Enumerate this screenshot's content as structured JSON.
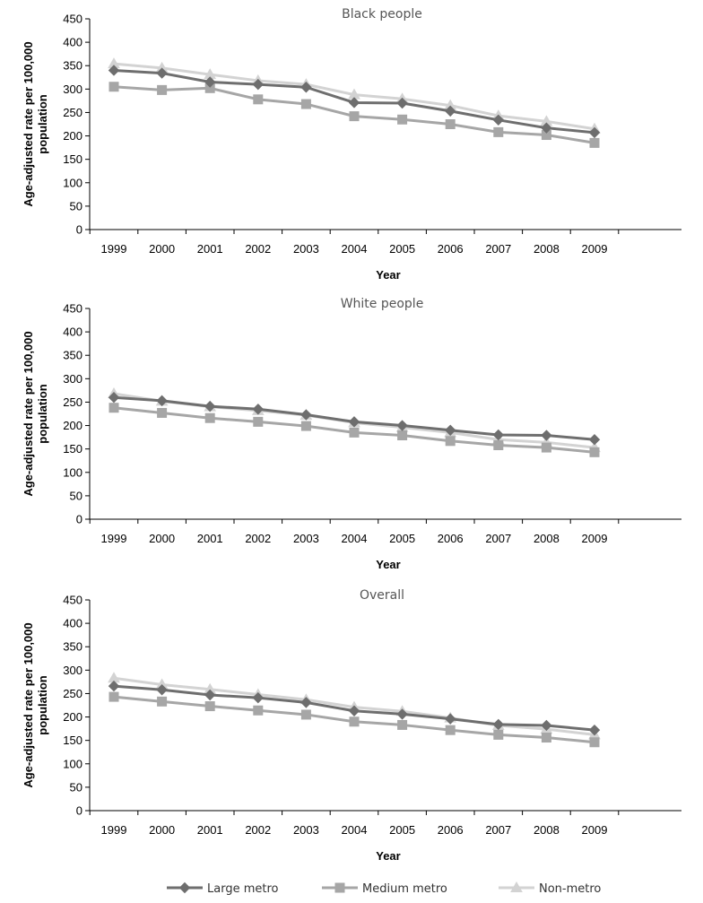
{
  "colors": {
    "large_metro": "#6e6e6e",
    "medium_metro": "#a6a6a6",
    "non_metro": "#d3d3d3",
    "axis": "#000000"
  },
  "legend": [
    {
      "label": "Large metro",
      "marker": "diamond",
      "color": "#6e6e6e"
    },
    {
      "label": "Medium metro",
      "marker": "square",
      "color": "#a6a6a6"
    },
    {
      "label": "Non-metro",
      "marker": "triangle",
      "color": "#d3d3d3"
    }
  ],
  "chart_data": [
    {
      "type": "line",
      "title": "Black people",
      "xlabel": "Year",
      "ylabel": "Age-adjusted rate per 100,000 population",
      "categories": [
        "1999",
        "2000",
        "2001",
        "2002",
        "2003",
        "2004",
        "2005",
        "2006",
        "2007",
        "2008",
        "2009"
      ],
      "ylim": [
        0,
        450
      ],
      "yticks": [
        0,
        50,
        100,
        150,
        200,
        250,
        300,
        350,
        400,
        450
      ],
      "grid": false,
      "series": [
        {
          "name": "Large metro",
          "marker": "diamond",
          "color": "#6e6e6e",
          "values": [
            340,
            334,
            315,
            310,
            304,
            271,
            270,
            253,
            234,
            217,
            207
          ]
        },
        {
          "name": "Medium metro",
          "marker": "square",
          "color": "#a6a6a6",
          "values": [
            305,
            298,
            302,
            278,
            268,
            242,
            235,
            225,
            208,
            202,
            185
          ]
        },
        {
          "name": "Non-metro",
          "marker": "triangle",
          "color": "#d3d3d3",
          "values": [
            354,
            345,
            331,
            318,
            310,
            288,
            279,
            265,
            243,
            231,
            215
          ]
        }
      ]
    },
    {
      "type": "line",
      "title": "White people",
      "xlabel": "Year",
      "ylabel": "Age-adjusted rate per 100,000 population",
      "categories": [
        "1999",
        "2000",
        "2001",
        "2002",
        "2003",
        "2004",
        "2005",
        "2006",
        "2007",
        "2008",
        "2009"
      ],
      "ylim": [
        0,
        450
      ],
      "yticks": [
        0,
        50,
        100,
        150,
        200,
        250,
        300,
        350,
        400,
        450
      ],
      "grid": false,
      "series": [
        {
          "name": "Large metro",
          "marker": "diamond",
          "color": "#6e6e6e",
          "values": [
            260,
            253,
            241,
            235,
            223,
            208,
            200,
            190,
            180,
            179,
            170
          ]
        },
        {
          "name": "Medium metro",
          "marker": "square",
          "color": "#a6a6a6",
          "values": [
            238,
            227,
            216,
            208,
            199,
            185,
            179,
            167,
            158,
            153,
            143
          ]
        },
        {
          "name": "Non-metro",
          "marker": "triangle",
          "color": "#d3d3d3",
          "values": [
            268,
            252,
            240,
            232,
            222,
            206,
            196,
            185,
            170,
            164,
            153
          ]
        }
      ]
    },
    {
      "type": "line",
      "title": "Overall",
      "xlabel": "Year",
      "ylabel": "Age-adjusted rate per 100,000 population",
      "categories": [
        "1999",
        "2000",
        "2001",
        "2002",
        "2003",
        "2004",
        "2005",
        "2006",
        "2007",
        "2008",
        "2009"
      ],
      "ylim": [
        0,
        450
      ],
      "yticks": [
        0,
        50,
        100,
        150,
        200,
        250,
        300,
        350,
        400,
        450
      ],
      "grid": false,
      "series": [
        {
          "name": "Large metro",
          "marker": "diamond",
          "color": "#6e6e6e",
          "values": [
            266,
            258,
            247,
            241,
            231,
            213,
            206,
            196,
            184,
            182,
            172
          ]
        },
        {
          "name": "Medium metro",
          "marker": "square",
          "color": "#a6a6a6",
          "values": [
            243,
            233,
            223,
            214,
            205,
            190,
            183,
            172,
            162,
            156,
            146
          ]
        },
        {
          "name": "Non-metro",
          "marker": "triangle",
          "color": "#d3d3d3",
          "values": [
            283,
            269,
            259,
            248,
            237,
            221,
            212,
            198,
            182,
            174,
            162
          ]
        }
      ]
    }
  ]
}
